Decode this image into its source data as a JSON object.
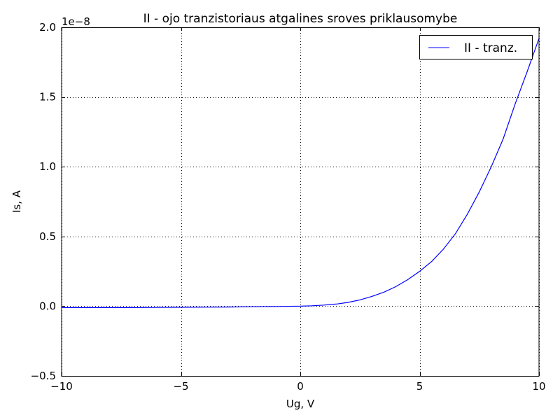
{
  "chart_data": {
    "type": "line",
    "title": "II - ojo tranzistoriaus atgalines sroves priklausomybe",
    "xlabel": "Ug, V",
    "ylabel": "Is, A",
    "xlim": [
      -10,
      10
    ],
    "ylim": [
      -5e-09,
      2e-08
    ],
    "y_offset_text": "1e−8",
    "y_scale": 1e-08,
    "xticks": [
      -10,
      -5,
      0,
      5,
      10
    ],
    "xtick_labels": [
      "−10",
      "−5",
      "0",
      "5",
      "10"
    ],
    "yticks": [
      -0.5,
      0.0,
      0.5,
      1.0,
      1.5,
      2.0
    ],
    "ytick_labels": [
      "−0.5",
      "0.0",
      "0.5",
      "1.0",
      "1.5",
      "2.0"
    ],
    "grid": true,
    "legend_position": "top-right",
    "series": [
      {
        "name": "II - tranz.",
        "color": "#0000ff",
        "x": [
          -10,
          -9,
          -8,
          -7,
          -6,
          -5,
          -4,
          -3,
          -2,
          -1,
          0,
          0.5,
          1,
          1.5,
          2,
          2.5,
          3,
          3.5,
          4,
          4.5,
          5,
          5.5,
          6,
          6.5,
          7,
          7.5,
          8,
          8.5,
          9,
          9.5,
          10
        ],
        "y": [
          -1e-10,
          -1e-10,
          -1e-10,
          -1e-10,
          -9e-11,
          -8e-11,
          -7e-11,
          -6e-11,
          -4e-11,
          -2e-11,
          0.0,
          3e-11,
          8e-11,
          1.5e-10,
          2.7e-10,
          4.5e-10,
          7e-10,
          1e-09,
          1.4e-09,
          1.9e-09,
          2.5e-09,
          3.2e-09,
          4.1e-09,
          5.2e-09,
          6.6e-09,
          8.2e-09,
          1e-08,
          1.2e-08,
          1.45e-08,
          1.68e-08,
          1.92e-08
        ]
      }
    ]
  }
}
